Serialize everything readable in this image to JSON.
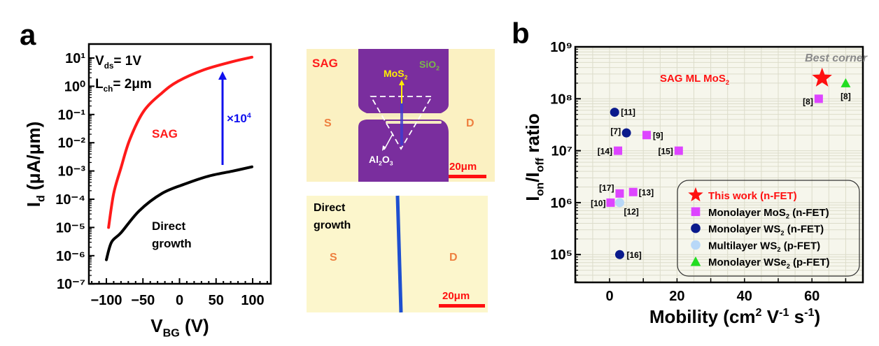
{
  "panel_labels": {
    "a": "a",
    "b": "b"
  },
  "chart_data": [
    {
      "type": "line",
      "panel": "a",
      "xlabel": "V_{BG} (V)",
      "ylabel": "I_{d} (μA/μm)",
      "xlim": [
        -125,
        125
      ],
      "ylim": [
        1e-07,
        30
      ],
      "yscale": "log",
      "xticks": [
        -100,
        -50,
        0,
        50,
        100
      ],
      "xtick_labels": [
        "−100",
        "−50",
        "0",
        "50",
        "100"
      ],
      "yticks": [
        10,
        1,
        0.1,
        0.01,
        0.001,
        0.0001,
        1e-05,
        1e-06,
        1e-07
      ],
      "ytick_labels": [
        "10¹",
        "10⁰",
        "10⁻¹",
        "10⁻²",
        "10⁻³",
        "10⁻⁴",
        "10⁻⁵",
        "10⁻⁶",
        "10⁻⁷"
      ],
      "annotations": {
        "vds": "V_{ds}= 1V",
        "lch": "L_{ch}= 2μm",
        "sag": "SAG",
        "gain": "×10^{4}",
        "direct_1": "Direct",
        "direct_2": "growth"
      },
      "series": [
        {
          "name": "SAG",
          "color": "#ff1a1a",
          "x": [
            -97,
            -90,
            -80,
            -68,
            -49,
            -24,
            -2,
            33,
            72,
            99
          ],
          "y": [
            1e-05,
            0.00016,
            0.0013,
            0.013,
            0.13,
            0.58,
            1.5,
            3.8,
            7.4,
            10.7
          ]
        },
        {
          "name": "Direct growth",
          "color": "#000000",
          "x": [
            -100,
            -93,
            -80,
            -55,
            -24,
            8,
            40,
            72,
            99
          ],
          "y": [
            7.2e-07,
            3e-06,
            6.5e-06,
            3.9e-05,
            0.00016,
            0.00035,
            0.00066,
            0.00098,
            0.0014
          ]
        }
      ],
      "arrow_color": "#1010ee"
    },
    {
      "type": "scatter",
      "panel": "b",
      "xlabel": "Mobility (cm^{2} V^{-1} s^{-1})",
      "ylabel": "I_{on}/I_{off} ratio",
      "xlim": [
        -10,
        75
      ],
      "ylim": [
        30000,
        1000000000
      ],
      "yscale": "log",
      "grid": true,
      "xticks": [
        0,
        20,
        40,
        60
      ],
      "xtick_labels": [
        "0",
        "20",
        "40",
        "60"
      ],
      "yticks": [
        1000000000,
        100000000,
        10000000,
        1000000,
        100000
      ],
      "ytick_labels": [
        "10⁹",
        "10⁸",
        "10⁷",
        "10⁶",
        "10⁵"
      ],
      "annotations": {
        "best_corner": "Best corner",
        "sag_ml": "SAG ML MoS_{2}"
      },
      "legend_placement": "bottom-right",
      "series": [
        {
          "name": "This work (n-FET)",
          "marker": "star",
          "color": "#ff1010",
          "points": [
            {
              "x": 63,
              "y": 250000000,
              "ref": ""
            }
          ]
        },
        {
          "name": "Monolayer MoS_{2} (n-FET)",
          "marker": "square",
          "color": "#dd44ff",
          "points": [
            {
              "x": 62,
              "y": 100000000,
              "ref": "[8]"
            },
            {
              "x": 11,
              "y": 20000000,
              "ref": "[9]"
            },
            {
              "x": 2.5,
              "y": 10000000,
              "ref": "[14]"
            },
            {
              "x": 20.5,
              "y": 10000000,
              "ref": "[15]"
            },
            {
              "x": 3,
              "y": 1500000,
              "ref": "[17]"
            },
            {
              "x": 7,
              "y": 1600000,
              "ref": "[13]"
            },
            {
              "x": 0.3,
              "y": 1000000,
              "ref": "[10]"
            }
          ]
        },
        {
          "name": "Monolayer WS_{2} (n-FET)",
          "marker": "circle",
          "color": "#0a1a8c",
          "points": [
            {
              "x": 1.5,
              "y": 55000000,
              "ref": "[11]"
            },
            {
              "x": 5,
              "y": 22000000,
              "ref": "[7]"
            },
            {
              "x": 3,
              "y": 100000,
              "ref": "[16]"
            }
          ]
        },
        {
          "name": "Multilayer WS_{2} (p-FET)",
          "marker": "circle",
          "color": "#b8d8f8",
          "points": [
            {
              "x": 3,
              "y": 1000000,
              "ref": "[12]"
            }
          ]
        },
        {
          "name": "Monolayer WSe_{2} (p-FET)",
          "marker": "triangle",
          "color": "#22dd22",
          "points": [
            {
              "x": 70,
              "y": 200000000,
              "ref": "[8]"
            }
          ]
        }
      ]
    }
  ],
  "micrographs": {
    "top": {
      "label": "SAG",
      "sio2": "SiO_{2}",
      "mos2": "MoS_{2}",
      "al2o3": "Al_{2}O_{3}",
      "source": "S",
      "drain": "D",
      "scale": "20μm"
    },
    "bottom": {
      "label_1": "Direct",
      "label_2": "growth",
      "source": "S",
      "drain": "D",
      "scale": "20μm"
    }
  }
}
